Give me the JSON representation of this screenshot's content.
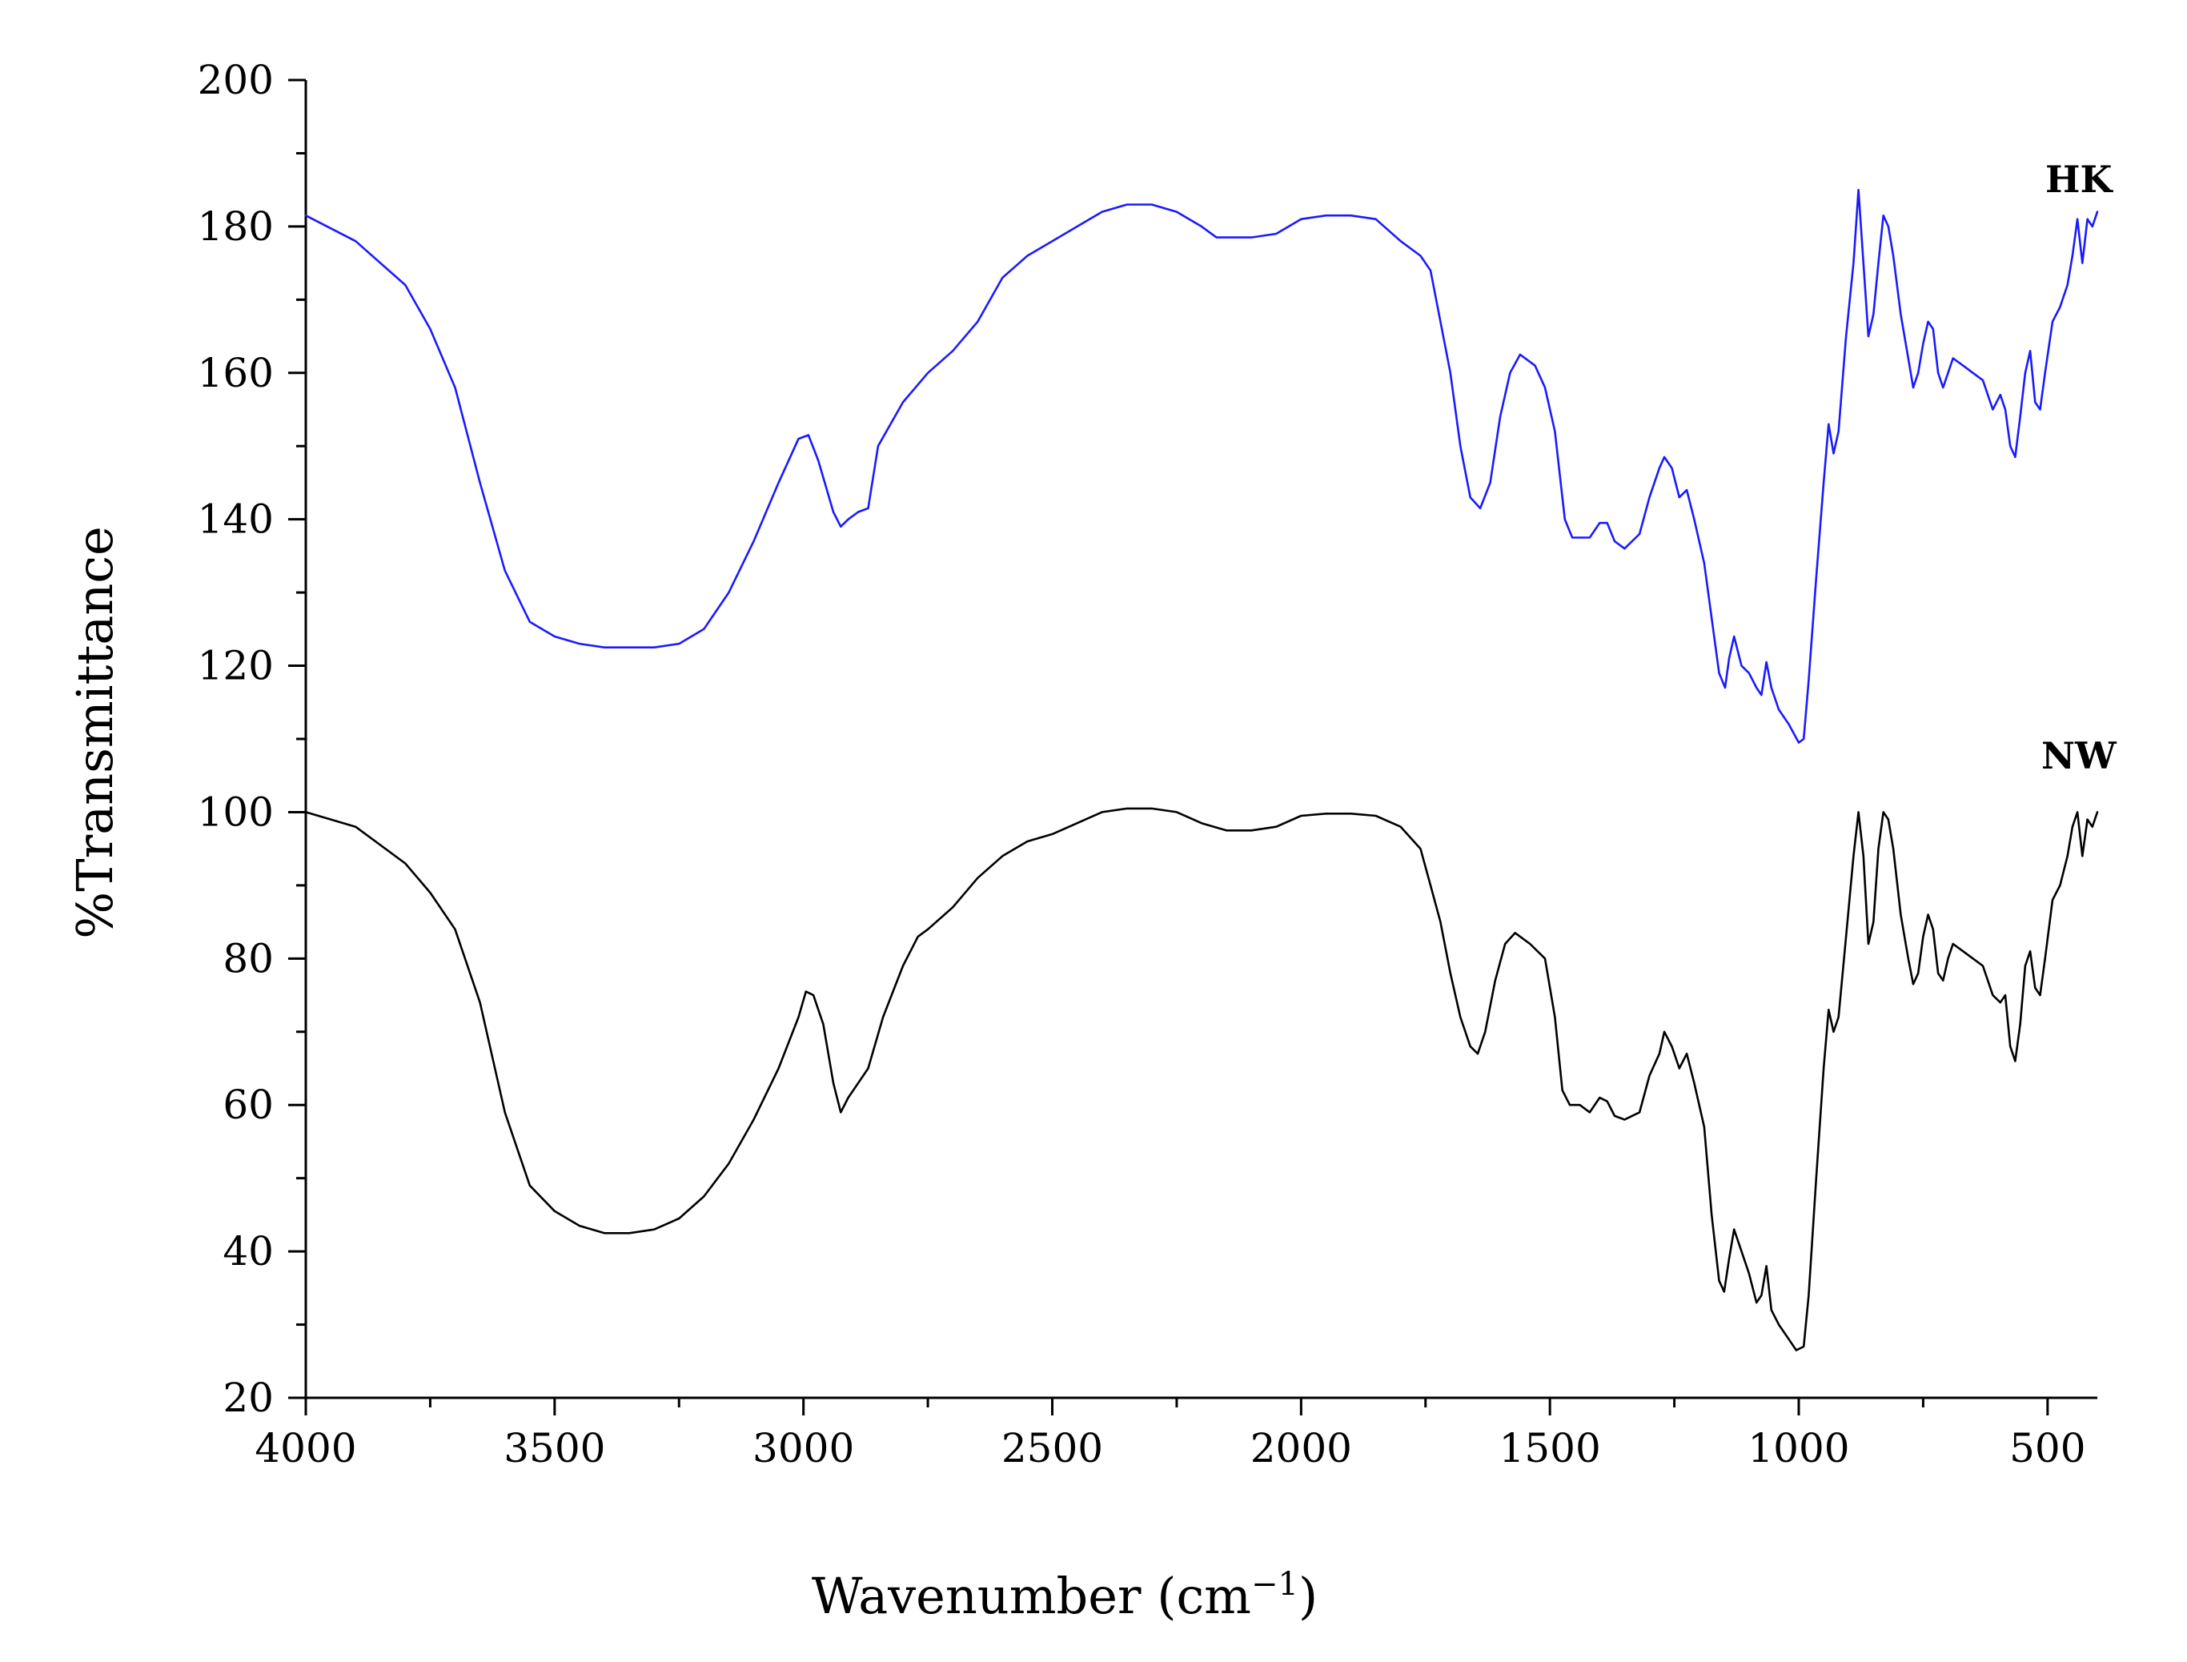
{
  "chart_data": {
    "type": "line",
    "title": "",
    "xlabel": "Wavenumber (cm",
    "xlabel_superscript": "−1",
    "xlabel_close": ")",
    "ylabel": "%Transmittance",
    "xlim": [
      4000,
      400
    ],
    "ylim": [
      20,
      200
    ],
    "x_ticks": [
      4000,
      3500,
      3000,
      2500,
      2000,
      1500,
      1000,
      500
    ],
    "y_ticks": [
      20,
      40,
      60,
      80,
      100,
      120,
      140,
      160,
      180,
      200
    ],
    "series": [
      {
        "name": "HK",
        "color": "#1a1aff",
        "points": [
          [
            4000,
            181.5
          ],
          [
            3900,
            178
          ],
          [
            3800,
            172
          ],
          [
            3750,
            166
          ],
          [
            3700,
            158
          ],
          [
            3650,
            145
          ],
          [
            3600,
            133
          ],
          [
            3550,
            126
          ],
          [
            3500,
            124
          ],
          [
            3450,
            123
          ],
          [
            3400,
            122.5
          ],
          [
            3300,
            122.5
          ],
          [
            3250,
            123
          ],
          [
            3200,
            125
          ],
          [
            3150,
            130
          ],
          [
            3100,
            137
          ],
          [
            3050,
            145
          ],
          [
            3010,
            151
          ],
          [
            2990,
            151.5
          ],
          [
            2970,
            148
          ],
          [
            2940,
            141
          ],
          [
            2925,
            139
          ],
          [
            2910,
            140
          ],
          [
            2890,
            141
          ],
          [
            2870,
            141.5
          ],
          [
            2850,
            150
          ],
          [
            2800,
            156
          ],
          [
            2750,
            160
          ],
          [
            2700,
            163
          ],
          [
            2650,
            167
          ],
          [
            2600,
            173
          ],
          [
            2550,
            176
          ],
          [
            2500,
            178
          ],
          [
            2450,
            180
          ],
          [
            2400,
            182
          ],
          [
            2350,
            183
          ],
          [
            2300,
            183
          ],
          [
            2250,
            182
          ],
          [
            2200,
            180
          ],
          [
            2170,
            178.5
          ],
          [
            2100,
            178.5
          ],
          [
            2050,
            179
          ],
          [
            2000,
            181
          ],
          [
            1950,
            181.5
          ],
          [
            1900,
            181.5
          ],
          [
            1850,
            181
          ],
          [
            1800,
            178
          ],
          [
            1760,
            176
          ],
          [
            1740,
            174
          ],
          [
            1720,
            167
          ],
          [
            1700,
            160
          ],
          [
            1680,
            150
          ],
          [
            1660,
            143
          ],
          [
            1640,
            141.5
          ],
          [
            1620,
            145
          ],
          [
            1600,
            154
          ],
          [
            1580,
            160
          ],
          [
            1560,
            162.5
          ],
          [
            1530,
            161
          ],
          [
            1510,
            158
          ],
          [
            1490,
            152
          ],
          [
            1470,
            140
          ],
          [
            1455,
            137.5
          ],
          [
            1420,
            137.5
          ],
          [
            1400,
            139.5
          ],
          [
            1385,
            139.5
          ],
          [
            1370,
            137
          ],
          [
            1350,
            136
          ],
          [
            1320,
            138
          ],
          [
            1300,
            143
          ],
          [
            1280,
            147
          ],
          [
            1270,
            148.5
          ],
          [
            1255,
            147
          ],
          [
            1240,
            143
          ],
          [
            1225,
            144
          ],
          [
            1210,
            140
          ],
          [
            1190,
            134
          ],
          [
            1170,
            124
          ],
          [
            1160,
            119
          ],
          [
            1148,
            117
          ],
          [
            1140,
            121
          ],
          [
            1130,
            124
          ],
          [
            1115,
            120
          ],
          [
            1100,
            119
          ],
          [
            1085,
            117
          ],
          [
            1075,
            116
          ],
          [
            1065,
            120.5
          ],
          [
            1055,
            117
          ],
          [
            1040,
            114
          ],
          [
            1020,
            112
          ],
          [
            1000,
            109.5
          ],
          [
            990,
            110
          ],
          [
            980,
            118
          ],
          [
            965,
            132
          ],
          [
            950,
            145
          ],
          [
            940,
            153
          ],
          [
            930,
            149
          ],
          [
            920,
            152
          ],
          [
            905,
            165
          ],
          [
            890,
            175
          ],
          [
            880,
            185
          ],
          [
            870,
            175
          ],
          [
            860,
            165
          ],
          [
            850,
            168
          ],
          [
            840,
            175
          ],
          [
            830,
            181.5
          ],
          [
            820,
            180
          ],
          [
            810,
            176
          ],
          [
            795,
            168
          ],
          [
            780,
            162
          ],
          [
            770,
            158
          ],
          [
            760,
            160
          ],
          [
            750,
            164
          ],
          [
            740,
            167
          ],
          [
            730,
            166
          ],
          [
            720,
            160
          ],
          [
            710,
            158
          ],
          [
            700,
            160
          ],
          [
            690,
            162
          ],
          [
            670,
            161
          ],
          [
            650,
            160
          ],
          [
            630,
            159
          ],
          [
            610,
            155
          ],
          [
            595,
            157
          ],
          [
            585,
            155
          ],
          [
            575,
            150
          ],
          [
            565,
            148.5
          ],
          [
            555,
            154
          ],
          [
            545,
            160
          ],
          [
            535,
            163
          ],
          [
            525,
            156
          ],
          [
            515,
            155
          ],
          [
            505,
            160
          ],
          [
            490,
            167
          ],
          [
            475,
            169
          ],
          [
            460,
            172
          ],
          [
            450,
            176
          ],
          [
            440,
            181
          ],
          [
            430,
            175
          ],
          [
            420,
            181
          ],
          [
            410,
            180
          ],
          [
            400,
            182
          ]
        ]
      },
      {
        "name": "NW",
        "color": "#000000",
        "points": [
          [
            4000,
            100
          ],
          [
            3900,
            98
          ],
          [
            3800,
            93
          ],
          [
            3750,
            89
          ],
          [
            3700,
            84
          ],
          [
            3650,
            74
          ],
          [
            3600,
            59
          ],
          [
            3550,
            49
          ],
          [
            3500,
            45.5
          ],
          [
            3450,
            43.5
          ],
          [
            3400,
            42.5
          ],
          [
            3350,
            42.5
          ],
          [
            3300,
            43
          ],
          [
            3250,
            44.5
          ],
          [
            3200,
            47.5
          ],
          [
            3150,
            52
          ],
          [
            3100,
            58
          ],
          [
            3050,
            65
          ],
          [
            3010,
            72
          ],
          [
            2995,
            75.5
          ],
          [
            2980,
            75
          ],
          [
            2960,
            71
          ],
          [
            2940,
            63
          ],
          [
            2925,
            59
          ],
          [
            2910,
            61
          ],
          [
            2890,
            63
          ],
          [
            2870,
            65
          ],
          [
            2840,
            72
          ],
          [
            2800,
            79
          ],
          [
            2770,
            83
          ],
          [
            2750,
            84
          ],
          [
            2700,
            87
          ],
          [
            2650,
            91
          ],
          [
            2600,
            94
          ],
          [
            2550,
            96
          ],
          [
            2500,
            97
          ],
          [
            2450,
            98.5
          ],
          [
            2400,
            100
          ],
          [
            2350,
            100.5
          ],
          [
            2300,
            100.5
          ],
          [
            2250,
            100
          ],
          [
            2200,
            98.5
          ],
          [
            2150,
            97.5
          ],
          [
            2100,
            97.5
          ],
          [
            2050,
            98
          ],
          [
            2000,
            99.5
          ],
          [
            1950,
            99.8
          ],
          [
            1900,
            99.8
          ],
          [
            1850,
            99.5
          ],
          [
            1800,
            98
          ],
          [
            1760,
            95
          ],
          [
            1740,
            90
          ],
          [
            1720,
            85
          ],
          [
            1700,
            78
          ],
          [
            1680,
            72
          ],
          [
            1660,
            68
          ],
          [
            1645,
            67
          ],
          [
            1630,
            70
          ],
          [
            1610,
            77
          ],
          [
            1590,
            82
          ],
          [
            1570,
            83.5
          ],
          [
            1540,
            82
          ],
          [
            1510,
            80
          ],
          [
            1490,
            72
          ],
          [
            1475,
            62
          ],
          [
            1460,
            60
          ],
          [
            1440,
            60
          ],
          [
            1420,
            59
          ],
          [
            1400,
            61
          ],
          [
            1385,
            60.5
          ],
          [
            1370,
            58.5
          ],
          [
            1350,
            58
          ],
          [
            1320,
            59
          ],
          [
            1300,
            64
          ],
          [
            1280,
            67
          ],
          [
            1270,
            70
          ],
          [
            1255,
            68
          ],
          [
            1240,
            65
          ],
          [
            1225,
            67
          ],
          [
            1210,
            63
          ],
          [
            1190,
            57
          ],
          [
            1175,
            45
          ],
          [
            1160,
            36
          ],
          [
            1150,
            34.5
          ],
          [
            1140,
            39
          ],
          [
            1130,
            43
          ],
          [
            1115,
            40
          ],
          [
            1100,
            37
          ],
          [
            1085,
            33
          ],
          [
            1075,
            34
          ],
          [
            1065,
            38
          ],
          [
            1055,
            32
          ],
          [
            1040,
            30
          ],
          [
            1020,
            28
          ],
          [
            1005,
            26.5
          ],
          [
            990,
            27
          ],
          [
            980,
            34
          ],
          [
            965,
            50
          ],
          [
            950,
            65
          ],
          [
            940,
            73
          ],
          [
            930,
            70
          ],
          [
            920,
            72
          ],
          [
            905,
            83
          ],
          [
            890,
            94
          ],
          [
            880,
            100
          ],
          [
            870,
            94
          ],
          [
            860,
            82
          ],
          [
            850,
            85
          ],
          [
            840,
            95
          ],
          [
            830,
            100
          ],
          [
            820,
            99
          ],
          [
            810,
            95
          ],
          [
            795,
            86
          ],
          [
            780,
            80
          ],
          [
            770,
            76.5
          ],
          [
            760,
            78
          ],
          [
            750,
            83
          ],
          [
            740,
            86
          ],
          [
            730,
            84
          ],
          [
            720,
            78
          ],
          [
            710,
            77
          ],
          [
            700,
            80
          ],
          [
            690,
            82
          ],
          [
            670,
            81
          ],
          [
            650,
            80
          ],
          [
            630,
            79
          ],
          [
            610,
            75
          ],
          [
            595,
            74
          ],
          [
            585,
            75
          ],
          [
            575,
            68
          ],
          [
            565,
            66
          ],
          [
            555,
            71
          ],
          [
            545,
            79
          ],
          [
            535,
            81
          ],
          [
            525,
            76
          ],
          [
            515,
            75
          ],
          [
            505,
            80
          ],
          [
            490,
            88
          ],
          [
            475,
            90
          ],
          [
            460,
            94
          ],
          [
            450,
            98
          ],
          [
            440,
            100
          ],
          [
            430,
            94
          ],
          [
            420,
            99
          ],
          [
            410,
            98
          ],
          [
            400,
            100
          ]
        ]
      }
    ]
  }
}
